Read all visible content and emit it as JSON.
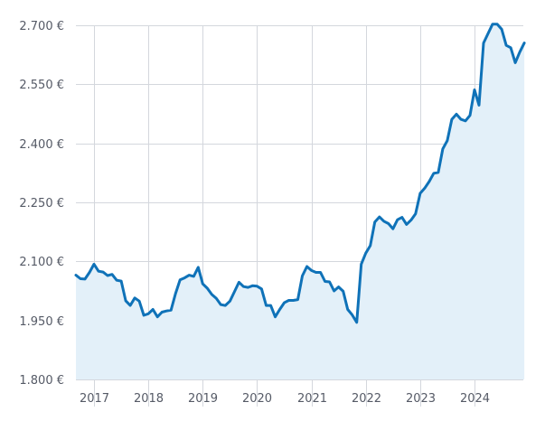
{
  "colors": {
    "line": "#0f72b8",
    "area": "#e3f0f9",
    "grid": "#d4d7dd",
    "tick_text": "#555a66",
    "background": "#ffffff"
  },
  "chart_data": {
    "type": "area",
    "title": "",
    "xlabel": "",
    "ylabel": "",
    "grid": true,
    "legend": "none",
    "x_range": [
      "2016-09",
      "2024-12"
    ],
    "ylim": [
      1800,
      2700
    ],
    "yticks": [
      1800,
      1950,
      2100,
      2250,
      2400,
      2550,
      2700
    ],
    "ytick_labels": [
      "1.800 €",
      "1.950 €",
      "2.100 €",
      "2.250 €",
      "2.400 €",
      "2.550 €",
      "2.700 €"
    ],
    "xticks": [
      "2017-01",
      "2018-01",
      "2019-01",
      "2020-01",
      "2021-01",
      "2022-01",
      "2023-01",
      "2024-01"
    ],
    "xtick_labels": [
      "2017",
      "2018",
      "2019",
      "2020",
      "2021",
      "2022",
      "2023",
      "2024"
    ],
    "series": [
      {
        "x": [
          "2016-09",
          "2016-10",
          "2016-11",
          "2016-12",
          "2017-01",
          "2017-02",
          "2017-03",
          "2017-04",
          "2017-05",
          "2017-06",
          "2017-07",
          "2017-08",
          "2017-09",
          "2017-10",
          "2017-11",
          "2017-12",
          "2018-01",
          "2018-02",
          "2018-03",
          "2018-04",
          "2018-05",
          "2018-06",
          "2018-07",
          "2018-08",
          "2018-09",
          "2018-10",
          "2018-11",
          "2018-12",
          "2019-01",
          "2019-02",
          "2019-03",
          "2019-04",
          "2019-05",
          "2019-06",
          "2019-07",
          "2019-08",
          "2019-09",
          "2019-10",
          "2019-11",
          "2019-12",
          "2020-01",
          "2020-02",
          "2020-03",
          "2020-04",
          "2020-05",
          "2020-06",
          "2020-07",
          "2020-08",
          "2020-09",
          "2020-10",
          "2020-11",
          "2020-12",
          "2021-01",
          "2021-02",
          "2021-03",
          "2021-04",
          "2021-05",
          "2021-06",
          "2021-07",
          "2021-08",
          "2021-09",
          "2021-10",
          "2021-11",
          "2021-12",
          "2022-01",
          "2022-02",
          "2022-03",
          "2022-04",
          "2022-05",
          "2022-06",
          "2022-07",
          "2022-08",
          "2022-09",
          "2022-10",
          "2022-11",
          "2022-12",
          "2023-01",
          "2023-02",
          "2023-03",
          "2023-04",
          "2023-05",
          "2023-06",
          "2023-07",
          "2023-08",
          "2023-09",
          "2023-10",
          "2023-11",
          "2023-12",
          "2024-01",
          "2024-02",
          "2024-03",
          "2024-04",
          "2024-05",
          "2024-06",
          "2024-07",
          "2024-08",
          "2024-09",
          "2024-10",
          "2024-11",
          "2024-12"
        ],
        "values": [
          2065,
          2056,
          2055,
          2072,
          2093,
          2075,
          2073,
          2064,
          2067,
          2052,
          2050,
          2000,
          1988,
          2007,
          1999,
          1963,
          1967,
          1978,
          1959,
          1971,
          1974,
          1976,
          2018,
          2053,
          2058,
          2065,
          2062,
          2085,
          2043,
          2032,
          2016,
          2006,
          1990,
          1988,
          1999,
          2023,
          2047,
          2036,
          2034,
          2038,
          2037,
          2030,
          1988,
          1988,
          1959,
          1978,
          1995,
          2001,
          2001,
          2003,
          2063,
          2087,
          2077,
          2072,
          2072,
          2049,
          2048,
          2025,
          2035,
          2024,
          1978,
          1964,
          1945,
          2093,
          2121,
          2140,
          2200,
          2213,
          2202,
          2196,
          2183,
          2206,
          2212,
          2194,
          2205,
          2221,
          2273,
          2286,
          2303,
          2324,
          2326,
          2386,
          2407,
          2461,
          2474,
          2461,
          2457,
          2471,
          2536,
          2497,
          2655,
          2679,
          2703,
          2703,
          2690,
          2649,
          2643,
          2605,
          2632,
          2655
        ]
      }
    ]
  }
}
